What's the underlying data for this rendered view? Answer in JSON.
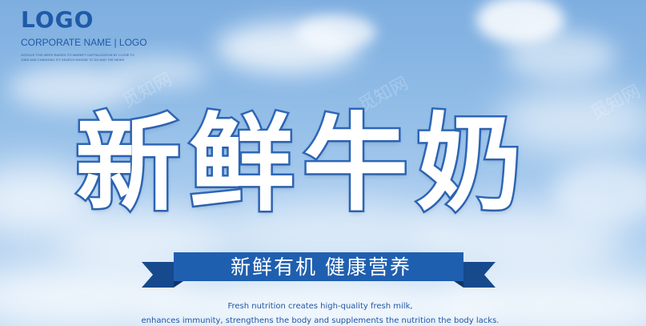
{
  "logo": {
    "word": "LOGO",
    "corporate_name": "CORPORATE NAME | LOGO",
    "fine_print_lines": [
      "GOOGLE THIS WEEK RAISED ITS MARKET CAPITALIZATION BY CLOSE TO",
      "JOBS AND CHANGING ITS SEARCH ENGINE TO DO AND THE NEWS"
    ]
  },
  "headline": "新鲜牛奶",
  "ribbon": {
    "text": "新鲜有机 健康营养"
  },
  "captions": [
    "Fresh nutrition creates high-quality fresh milk,",
    "enhances immunity, strengthens the body and supplements the nutrition the body lacks."
  ],
  "watermarks": [
    "觅知网",
    "觅知网",
    "觅知网"
  ],
  "colors": {
    "sky_top": "#7eaee0",
    "sky_bottom": "#c2dbf3",
    "brand_blue": "#1e5aa8",
    "headline_outline": "#2f68b8",
    "ribbon_front": "#1f5fb0",
    "ribbon_back": "#174a8c",
    "text_white": "#ffffff"
  }
}
